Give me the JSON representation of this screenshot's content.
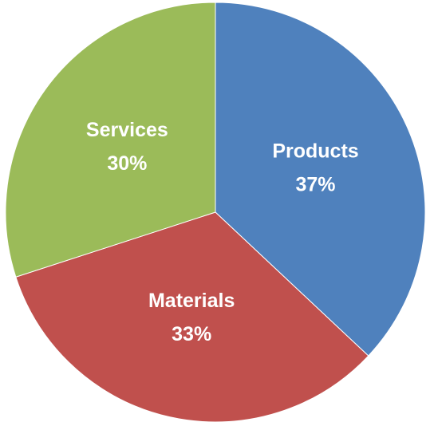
{
  "chart_data": {
    "type": "pie",
    "categories": [
      "Products",
      "Materials",
      "Services"
    ],
    "values": [
      37,
      33,
      30
    ],
    "value_labels": [
      "37%",
      "33%",
      "30%"
    ],
    "colors": [
      "#4f81bd",
      "#c0504d",
      "#9bbb59"
    ]
  }
}
